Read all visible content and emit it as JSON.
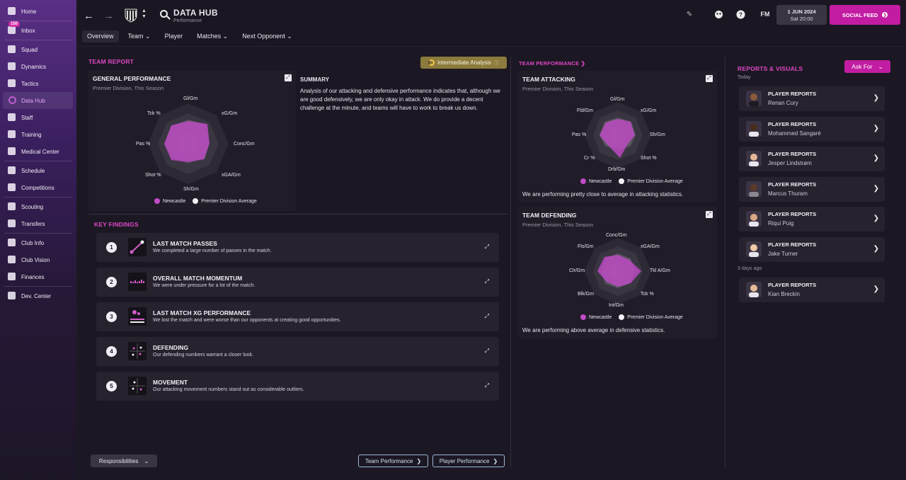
{
  "sidebar": {
    "items": [
      {
        "label": "Home"
      },
      {
        "label": "Inbox",
        "badge": "150"
      },
      {
        "label": "Squad"
      },
      {
        "label": "Dynamics"
      },
      {
        "label": "Tactics"
      },
      {
        "label": "Data Hub",
        "active": true
      },
      {
        "label": "Staff"
      },
      {
        "label": "Training"
      },
      {
        "label": "Medical Center"
      },
      {
        "label": "Schedule"
      },
      {
        "label": "Competitions"
      },
      {
        "label": "Scouting"
      },
      {
        "label": "Transfers"
      },
      {
        "label": "Club Info"
      },
      {
        "label": "Club Vision"
      },
      {
        "label": "Finances"
      },
      {
        "label": "Dev. Center"
      }
    ]
  },
  "header": {
    "title": "DATA HUB",
    "subtitle": "Performance",
    "fm_label": "FM",
    "date": "1 JUN 2024",
    "time": "Sat 20:00",
    "social_feed": "SOCIAL FEED",
    "tabs": [
      {
        "label": "Overview"
      },
      {
        "label": "Team"
      },
      {
        "label": "Player"
      },
      {
        "label": "Matches"
      },
      {
        "label": "Next Opponent"
      }
    ]
  },
  "team_report": {
    "section_title": "TEAM REPORT",
    "analysis_badge": "Intermediate Analysis",
    "general": {
      "title": "GENERAL PERFORMANCE",
      "subtitle": "Premier Division, This Season",
      "labels": [
        "Gl/Gm",
        "xG/Gm",
        "Conc/Gm",
        "xGA/Gm",
        "Sh/Gm",
        "Shot %",
        "Pas %",
        "Tck %"
      ]
    },
    "summary_title": "SUMMARY",
    "summary_text": "Analysis of our attacking and defensive performance indicates that, although we are good defensively, we are only okay in attack. We do provide a decent challenge at the minute, and teams will have to work to break us down."
  },
  "legend": {
    "team": "Newcastle",
    "avg": "Premier Division Average"
  },
  "key_findings": {
    "title": "KEY FINDINGS",
    "items": [
      {
        "num": "1",
        "title": "LAST MATCH PASSES",
        "desc": "We completed a large number of passes in the match."
      },
      {
        "num": "2",
        "title": "OVERALL MATCH MOMENTUM",
        "desc": "We were under pressure for a lot of the match."
      },
      {
        "num": "3",
        "title": "LAST MATCH XG PERFORMANCE",
        "desc": "We lost the match and were worse than our opponents at creating good opportunities."
      },
      {
        "num": "4",
        "title": "DEFENDING",
        "desc": "Our defending numbers warrant a closer look."
      },
      {
        "num": "5",
        "title": "MOVEMENT",
        "desc": "Our attacking movement numbers stand out as considerable outliers."
      }
    ]
  },
  "footer": {
    "responsibilities": "Responsibilities",
    "team_perf_btn": "Team Performance",
    "player_perf_btn": "Player Performance"
  },
  "team_performance": {
    "section_title": "TEAM PERFORMANCE",
    "attacking": {
      "title": "TEAM ATTACKING",
      "subtitle": "Premier Division, This Season",
      "labels": [
        "Gl/Gm",
        "xG/Gm",
        "Sh/Gm",
        "Shot %",
        "Drb/Gm",
        "Cr %",
        "Pas %",
        "Fld/Gm"
      ],
      "note": "We are performing pretty close to average in attacking statistics."
    },
    "defending": {
      "title": "TEAM DEFENDING",
      "subtitle": "Premier Division, This Season",
      "labels": [
        "Conc/Gm",
        "xGA/Gm",
        "Tkl A/Gm",
        "Tck %",
        "Int/Gm",
        "Blk/Gm",
        "Clr/Gm",
        "Fls/Gm"
      ],
      "note": "We are performing above average in defensive statistics."
    }
  },
  "reports": {
    "title": "REPORTS & VISUALS",
    "ask_for": "Ask For",
    "group_today": "Today",
    "group_earlier": "3 days ago",
    "items": [
      {
        "title": "PLAYER REPORTS",
        "name": "Renan Cury"
      },
      {
        "title": "PLAYER REPORTS",
        "name": "Mohammed Sangaré"
      },
      {
        "title": "PLAYER REPORTS",
        "name": "Jesper Lindstrøm"
      },
      {
        "title": "PLAYER REPORTS",
        "name": "Marcus Thuram"
      },
      {
        "title": "PLAYER REPORTS",
        "name": "Riqui Puig"
      },
      {
        "title": "PLAYER REPORTS",
        "name": "Jake Turner"
      },
      {
        "title": "PLAYER REPORTS",
        "name": "Kian Breckin"
      }
    ]
  },
  "colors": {
    "accent": "#c21da2",
    "team_series": "#c24bc9",
    "avg_series": "#8c8a90"
  }
}
